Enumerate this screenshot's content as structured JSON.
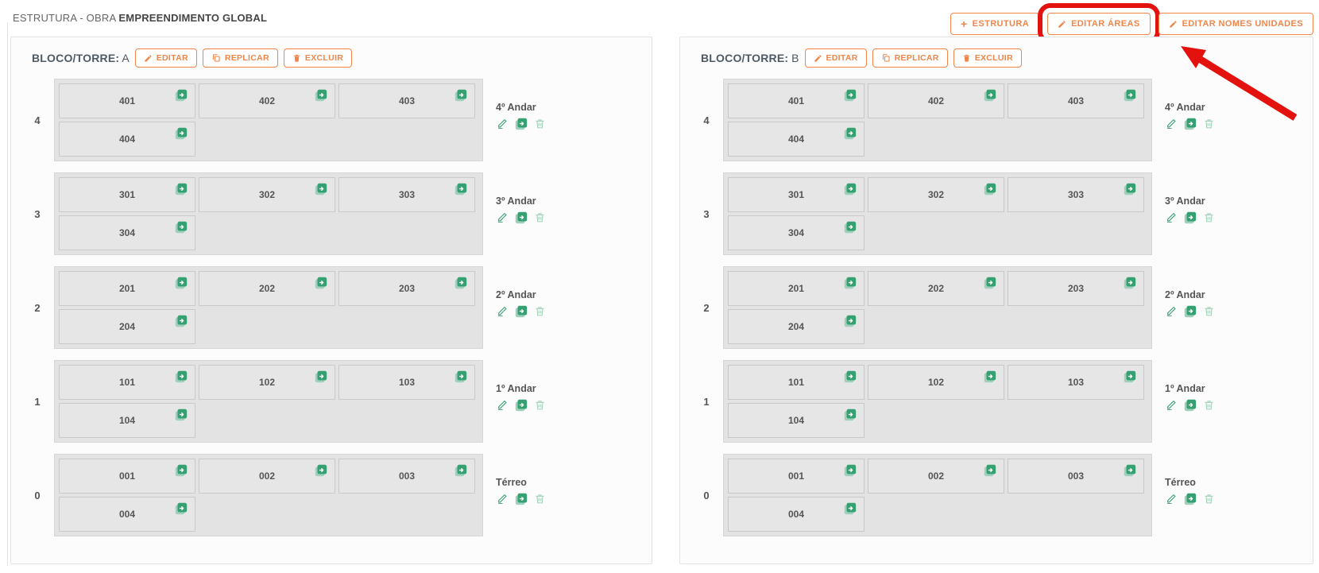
{
  "header": {
    "title_prefix": "ESTRUTURA - OBRA",
    "title_bold": "EMPREENDIMENTO GLOBAL"
  },
  "toolbar": {
    "buttons": [
      {
        "id": "add-structure",
        "icon": "plus-icon",
        "label": "ESTRUTURA",
        "highlighted": false
      },
      {
        "id": "edit-areas",
        "icon": "pencil-icon",
        "label": "EDITAR ÁREAS",
        "highlighted": true
      },
      {
        "id": "edit-unit-names",
        "icon": "pencil-icon",
        "label": "EDITAR NOMES UNIDADES",
        "highlighted": false
      }
    ]
  },
  "blocks": [
    {
      "title_label": "BLOCO/TORRE:",
      "name": "A",
      "buttons": [
        {
          "id": "edit-block",
          "icon": "pencil-icon",
          "label": "EDITAR"
        },
        {
          "id": "replicate-block",
          "icon": "copy-icon",
          "label": "REPLICAR"
        },
        {
          "id": "delete-block",
          "icon": "trash-icon",
          "label": "EXCLUIR"
        }
      ],
      "floors": [
        {
          "number": "4",
          "name": "4º Andar",
          "units": [
            "401",
            "402",
            "403",
            "404"
          ]
        },
        {
          "number": "3",
          "name": "3º Andar",
          "units": [
            "301",
            "302",
            "303",
            "304"
          ]
        },
        {
          "number": "2",
          "name": "2º Andar",
          "units": [
            "201",
            "202",
            "203",
            "204"
          ]
        },
        {
          "number": "1",
          "name": "1º Andar",
          "units": [
            "101",
            "102",
            "103",
            "104"
          ]
        },
        {
          "number": "0",
          "name": "Térreo",
          "units": [
            "001",
            "002",
            "003",
            "004"
          ]
        }
      ]
    },
    {
      "title_label": "BLOCO/TORRE:",
      "name": "B",
      "buttons": [
        {
          "id": "edit-block",
          "icon": "pencil-icon",
          "label": "EDITAR"
        },
        {
          "id": "replicate-block",
          "icon": "copy-icon",
          "label": "REPLICAR"
        },
        {
          "id": "delete-block",
          "icon": "trash-icon",
          "label": "EXCLUIR"
        }
      ],
      "floors": [
        {
          "number": "4",
          "name": "4º Andar",
          "units": [
            "401",
            "402",
            "403",
            "404"
          ]
        },
        {
          "number": "3",
          "name": "3º Andar",
          "units": [
            "301",
            "302",
            "303",
            "304"
          ]
        },
        {
          "number": "2",
          "name": "2º Andar",
          "units": [
            "201",
            "202",
            "203",
            "204"
          ]
        },
        {
          "number": "1",
          "name": "1º Andar",
          "units": [
            "101",
            "102",
            "103",
            "104"
          ]
        },
        {
          "number": "0",
          "name": "Térreo",
          "units": [
            "001",
            "002",
            "003",
            "004"
          ]
        }
      ]
    }
  ],
  "colors": {
    "accent_orange": "#f0854a",
    "icon_green": "#35a071",
    "icon_green_light": "#9fd0bb",
    "icon_green_pale": "#a9d3bf",
    "highlight_red": "#e3120e",
    "text_dark": "#555555"
  }
}
